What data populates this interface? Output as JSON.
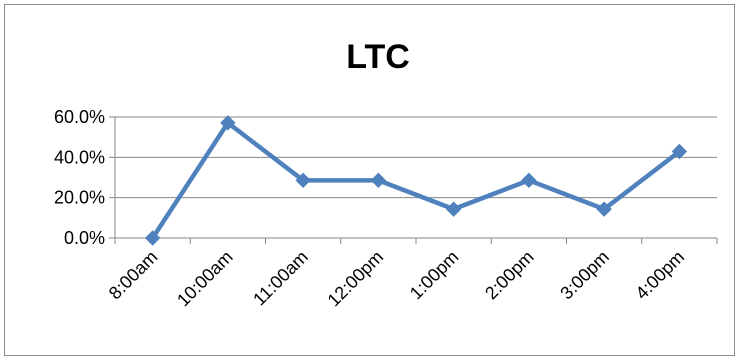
{
  "chart_data": {
    "type": "line",
    "title": "LTC",
    "xlabel": "",
    "ylabel": "",
    "categories": [
      "8:00am",
      "10:00am",
      "11:00am",
      "12:00pm",
      "1:00pm",
      "2:00pm",
      "3:00pm",
      "4:00pm"
    ],
    "series": [
      {
        "values": [
          0.0,
          57.1,
          28.6,
          28.6,
          14.3,
          28.6,
          14.3,
          42.9
        ],
        "color": "#4f81bd"
      }
    ],
    "ylim": [
      0,
      60
    ],
    "yticks": [
      0,
      20,
      40,
      60
    ],
    "ytick_labels": [
      "0.0%",
      "20.0%",
      "40.0%",
      "60.0%"
    ],
    "grid": true,
    "legend": "none",
    "marker": "diamond"
  }
}
